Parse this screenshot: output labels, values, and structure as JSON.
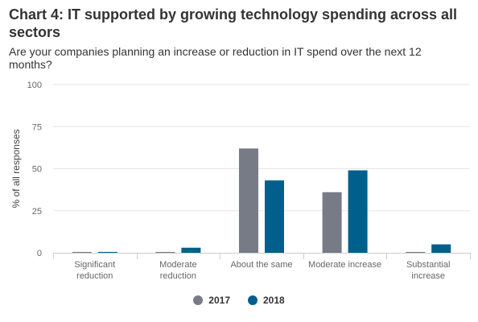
{
  "header": {
    "title": "Chart 4: IT supported by growing technology spending across all sectors",
    "subtitle": "Are your companies planning an increase or reduction in IT spend over the next 12 months?"
  },
  "colors": {
    "series_2017": "#767b86",
    "series_2018": "#005f8c",
    "grid": "#e6e6e6",
    "axis": "#cccccc"
  },
  "chart_data": {
    "type": "bar",
    "title": "Chart 4: IT supported by growing technology spending across all sectors",
    "subtitle": "Are your companies planning an increase or reduction in IT spend over the next 12 months?",
    "xlabel": "",
    "ylabel": "% of all responses",
    "ylim": [
      0,
      100
    ],
    "yticks": [
      0,
      25,
      50,
      75,
      100
    ],
    "grid": true,
    "legend_position": "bottom",
    "categories": [
      [
        "Significant",
        "reduction"
      ],
      [
        "Moderate",
        "reduction"
      ],
      [
        "About the same"
      ],
      [
        "Moderate increase"
      ],
      [
        "Substantial",
        "increase"
      ]
    ],
    "series": [
      {
        "name": "2017",
        "values": [
          0.5,
          0.5,
          62,
          36,
          0.5
        ]
      },
      {
        "name": "2018",
        "values": [
          0.5,
          3,
          43,
          49,
          5
        ]
      }
    ]
  }
}
